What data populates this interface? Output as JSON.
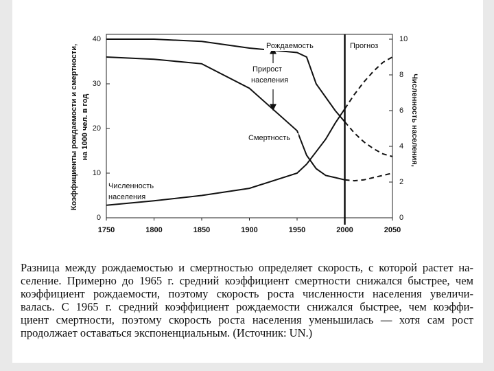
{
  "chart_data": {
    "type": "line",
    "y_label": [
      "Коэффициенты рождаемости и смертности,",
      "на 1000 чел. в год"
    ],
    "y2_label": "Численность населения,",
    "x": [
      1750,
      1800,
      1850,
      1900,
      1950,
      1960,
      1970,
      1980,
      1990,
      2000,
      2010,
      2020,
      2030,
      2040,
      2050
    ],
    "xlim": [
      1750,
      2050
    ],
    "xticks": [
      1750,
      1800,
      1850,
      1900,
      1950,
      2000,
      2050
    ],
    "ylim": [
      0,
      40
    ],
    "yticks": [
      0,
      10,
      20,
      30,
      40
    ],
    "y2lim": [
      0,
      10
    ],
    "y2ticks": [
      0,
      2,
      4,
      6,
      8,
      10
    ],
    "forecast_x": 2000,
    "series": [
      {
        "name": "Рождаемость",
        "color": "#111111",
        "values": [
          40,
          40,
          39.5,
          38,
          37,
          36,
          30,
          27,
          24,
          21.5,
          19,
          17,
          15.5,
          14.3,
          13.7
        ]
      },
      {
        "name": "Смертность",
        "color": "#111111",
        "values": [
          36,
          35.5,
          34.5,
          29,
          19.5,
          14,
          11,
          9.5,
          9,
          8.5,
          8.3,
          8.5,
          9,
          9.5,
          10
        ]
      },
      {
        "name": "Численность населения",
        "color": "#111111",
        "axis": "y2",
        "values": [
          0.7,
          0.95,
          1.25,
          1.65,
          2.5,
          3,
          3.7,
          4.4,
          5.3,
          6.1,
          6.9,
          7.6,
          8.2,
          8.7,
          9
        ]
      }
    ],
    "annotations": {
      "birth": "Рождаемость",
      "forecast": "Прогноз",
      "growth": [
        "Прирост",
        "населения"
      ],
      "death": "Смертность",
      "population": [
        "Численность",
        "населения"
      ]
    },
    "caption": [
      "Разница между рождаемостью и смертностью определяет скорость, с которой растет на-",
      "селение. Примерно до 1965 г. средний коэффициент смертности снижался быстрее, чем",
      "коэффициент рождаемости, поэтому скорость роста численности населения увеличи-",
      "валась. С 1965 г. средний коэффициент рождаемости снижался быстрее, чем коэффи-",
      "циент смертности, поэтому скорость роста населения уменьшилась — хотя сам рост",
      "продолжает оставаться экспоненциальным. (Источник: UN.)"
    ]
  }
}
